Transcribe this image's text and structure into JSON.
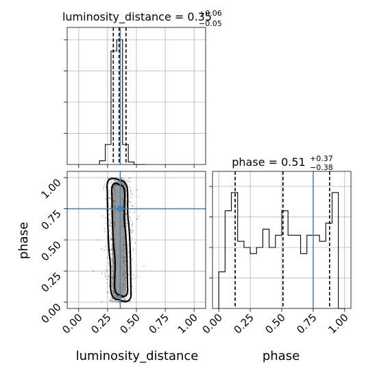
{
  "chart_data": {
    "type": "corner",
    "parameters": [
      "luminosity_distance",
      "phase"
    ],
    "truth": {
      "luminosity_distance": 0.36,
      "phase": 0.75
    },
    "marginals": [
      {
        "parameter": "luminosity_distance",
        "title": "luminosity_distance = 0.35",
        "median": 0.35,
        "plus": "+0.06",
        "minus": "−0.05",
        "quantiles": [
          0.3,
          0.35,
          0.41
        ],
        "bin_edges": [
          0.18,
          0.23,
          0.28,
          0.33,
          0.38,
          0.43,
          0.48,
          0.53,
          0.58
        ],
        "counts": [
          0.03,
          0.16,
          0.91,
          1.0,
          0.16,
          0.02,
          0.0,
          0.0
        ],
        "xlim": [
          -0.1,
          1.1
        ],
        "show_tick_labels": false
      },
      {
        "parameter": "phase",
        "title": "phase = 0.51",
        "median": 0.51,
        "plus": "+0.37",
        "minus": "−0.38",
        "quantiles": [
          0.13,
          0.51,
          0.88
        ],
        "bin_edges": [
          0.0,
          0.05,
          0.1,
          0.15,
          0.2,
          0.25,
          0.3,
          0.35,
          0.4,
          0.45,
          0.5,
          0.55,
          0.6,
          0.65,
          0.7,
          0.75,
          0.8,
          0.85,
          0.9,
          0.95,
          1.0
        ],
        "counts": [
          0.3,
          0.8,
          0.95,
          0.55,
          0.5,
          0.45,
          0.5,
          0.65,
          0.5,
          0.6,
          0.8,
          0.6,
          0.6,
          0.45,
          0.6,
          0.6,
          0.55,
          0.7,
          0.95,
          0.0
        ],
        "xlim": [
          -0.05,
          1.05
        ],
        "x_ticks": [
          "0.00",
          "0.25",
          "0.50",
          "0.75",
          "1.00"
        ],
        "xlabel": "phase"
      }
    ],
    "joint": {
      "x": "luminosity_distance",
      "y": "phase",
      "xlim": [
        -0.1,
        1.1
      ],
      "ylim": [
        -0.05,
        1.05
      ],
      "x_ticks": [
        "0.00",
        "0.25",
        "0.50",
        "0.75",
        "1.00"
      ],
      "y_ticks": [
        "0.00",
        "0.25",
        "0.50",
        "0.75",
        "1.00"
      ],
      "xlabel": "luminosity_distance",
      "ylabel": "phase",
      "sample_center_x": 0.35,
      "sample_spread_x": 0.055
    },
    "grid": true,
    "colors": {
      "hist": "#000000",
      "truth": "#4682b4",
      "quantile": "#000000",
      "grid": "#b0b0b0"
    }
  }
}
